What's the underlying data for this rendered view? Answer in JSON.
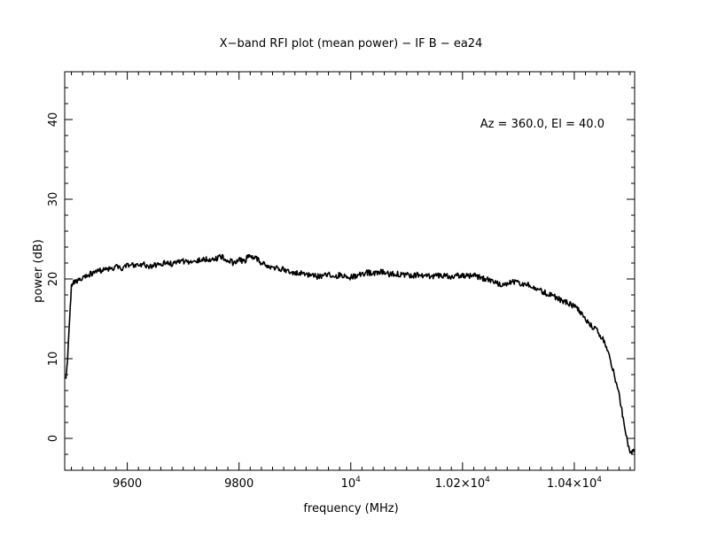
{
  "chart_data": {
    "type": "line",
    "title": "X−band RFI plot (mean power) − IF B − ea24",
    "xlabel": "frequency (MHz)",
    "ylabel": "power (dB)",
    "annotation": "Az = 360.0, El = 40.0",
    "xlim": [
      9488,
      10508
    ],
    "ylim": [
      -4,
      46
    ],
    "grid": false,
    "legend": "none",
    "x_ticks": [
      {
        "value": 9600,
        "label": "9600"
      },
      {
        "value": 9800,
        "label": "9800"
      },
      {
        "value": 10000,
        "label": "10",
        "sup": "4"
      },
      {
        "value": 10200,
        "label": "1.02×10",
        "sup": "4"
      },
      {
        "value": 10400,
        "label": "1.04×10",
        "sup": "4"
      }
    ],
    "y_ticks": [
      {
        "value": 0,
        "label": "0"
      },
      {
        "value": 10,
        "label": "10"
      },
      {
        "value": 20,
        "label": "20"
      },
      {
        "value": 30,
        "label": "30"
      },
      {
        "value": 40,
        "label": "40"
      }
    ],
    "x_minor_step": 20,
    "y_minor_step": 2,
    "series": [
      {
        "color": "#000000",
        "x": [
          9490,
          9493,
          9497,
          9500,
          9503,
          9510,
          9520,
          9530,
          9540,
          9550,
          9560,
          9570,
          9580,
          9590,
          9600,
          9610,
          9620,
          9630,
          9640,
          9650,
          9660,
          9670,
          9680,
          9690,
          9700,
          9710,
          9720,
          9730,
          9740,
          9750,
          9760,
          9770,
          9780,
          9790,
          9800,
          9810,
          9815,
          9820,
          9825,
          9830,
          9840,
          9850,
          9860,
          9870,
          9880,
          9890,
          9900,
          9910,
          9920,
          9930,
          9940,
          9950,
          9960,
          9970,
          9980,
          9990,
          10000,
          10010,
          10020,
          10030,
          10040,
          10050,
          10060,
          10070,
          10080,
          10090,
          10100,
          10110,
          10120,
          10130,
          10140,
          10150,
          10160,
          10170,
          10180,
          10190,
          10200,
          10210,
          10220,
          10230,
          10240,
          10250,
          10260,
          10270,
          10280,
          10290,
          10300,
          10310,
          10320,
          10330,
          10340,
          10350,
          10360,
          10370,
          10380,
          10390,
          10400,
          10410,
          10420,
          10430,
          10440,
          10450,
          10460,
          10470,
          10480,
          10485,
          10490,
          10495,
          10500,
          10503,
          10506,
          10508
        ],
        "y": [
          7.5,
          10,
          15,
          19,
          19.5,
          19.6,
          20.2,
          20.5,
          20.8,
          21.0,
          21.2,
          21.3,
          21.5,
          21.4,
          21.6,
          21.8,
          21.7,
          21.8,
          21.6,
          21.7,
          21.9,
          22.0,
          21.9,
          22.0,
          22.2,
          22.1,
          22.3,
          22.4,
          22.5,
          22.2,
          22.6,
          22.8,
          22.4,
          22.0,
          22.5,
          22.1,
          22.8,
          23.0,
          22.7,
          22.6,
          22.0,
          21.6,
          21.5,
          21.3,
          21.2,
          20.8,
          20.6,
          20.8,
          20.5,
          20.6,
          20.3,
          20.4,
          20.6,
          20.2,
          20.5,
          20.4,
          20.2,
          20.4,
          20.6,
          20.8,
          20.7,
          20.9,
          20.8,
          20.6,
          20.7,
          20.5,
          20.6,
          20.4,
          20.5,
          20.3,
          20.4,
          20.3,
          20.5,
          20.4,
          20.3,
          20.4,
          20.5,
          20.3,
          20.6,
          20.2,
          20.0,
          19.8,
          19.6,
          19.2,
          19.4,
          19.6,
          19.5,
          19.3,
          19.2,
          18.9,
          18.5,
          18.2,
          18.0,
          17.6,
          17.2,
          17.0,
          16.5,
          15.9,
          15.0,
          14.2,
          13.5,
          12.6,
          11.0,
          8.5,
          5.5,
          3.5,
          1.5,
          -0.5,
          -1.5,
          -1.8,
          -1.5,
          -1.4
        ]
      }
    ]
  }
}
